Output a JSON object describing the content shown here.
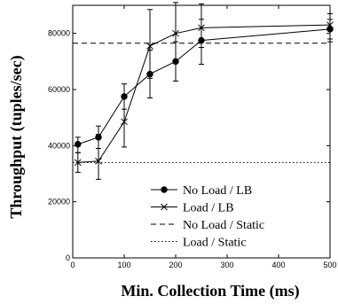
{
  "chart_data": {
    "type": "line",
    "title": "",
    "xlabel": "Min. Collection Time (ms)",
    "ylabel": "Throughput (tuples/sec)",
    "xlim": [
      0,
      500
    ],
    "ylim": [
      0,
      90000
    ],
    "xticks": [
      0,
      100,
      200,
      300,
      400,
      500
    ],
    "yticks": [
      0,
      20000,
      40000,
      60000,
      80000
    ],
    "grid": false,
    "legend_position": "bottom-right",
    "series": [
      {
        "name": "No Load / LB",
        "marker": "dot",
        "style": "solid",
        "color": "#000000",
        "x": [
          10,
          50,
          100,
          150,
          200,
          250,
          500
        ],
        "y": [
          40500,
          43000,
          57500,
          65500,
          70000,
          77500,
          81500
        ],
        "err_low": [
          37500,
          39000,
          53000,
          57000,
          63000,
          69000,
          77000
        ],
        "err_high": [
          43000,
          47000,
          62000,
          74000,
          77000,
          85000,
          85000
        ]
      },
      {
        "name": "Load / LB",
        "marker": "x",
        "style": "solid",
        "color": "#000000",
        "x": [
          10,
          50,
          100,
          150,
          200,
          250,
          500
        ],
        "y": [
          34000,
          34500,
          48500,
          75500,
          80000,
          82000,
          83000
        ],
        "err_low": [
          30500,
          28000,
          39500,
          64000,
          70000,
          75000,
          78000
        ],
        "err_high": [
          37500,
          44000,
          57000,
          88500,
          91000,
          90500,
          87000
        ]
      },
      {
        "name": "No Load / Static",
        "marker": "none",
        "style": "dashed",
        "color": "#000000",
        "x": [
          0,
          500
        ],
        "y": [
          76500,
          76500
        ]
      },
      {
        "name": "Load / Static",
        "marker": "none",
        "style": "dotted",
        "color": "#000000",
        "x": [
          0,
          500
        ],
        "y": [
          34000,
          34000
        ]
      }
    ]
  }
}
